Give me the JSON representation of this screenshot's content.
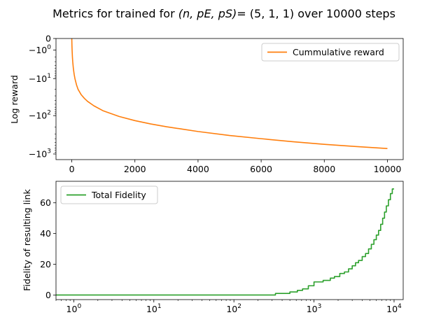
{
  "figure": {
    "title_prefix": "Metrics for trained for ",
    "title_math": "(n, pE, pS)",
    "title_suffix": "= (5, 1, 1) over 10000 steps"
  },
  "chart_data": [
    {
      "type": "line",
      "title": "",
      "xlabel": "",
      "ylabel": "Log reward",
      "xscale": "linear",
      "yscale": "symlog",
      "xlim": [
        -500,
        10500
      ],
      "ylim": [
        -1400,
        0
      ],
      "xticks": [
        0,
        2000,
        4000,
        6000,
        8000,
        10000
      ],
      "xtick_labels": [
        "0",
        "2000",
        "4000",
        "6000",
        "8000",
        "10000"
      ],
      "yticks": [
        0,
        -1,
        -10,
        -100,
        -1000
      ],
      "ytick_labels": [
        {
          "base": "0",
          "exp": ""
        },
        {
          "base": "−10",
          "exp": "0"
        },
        {
          "base": "−10",
          "exp": "1"
        },
        {
          "base": "−10",
          "exp": "2"
        },
        {
          "base": "−10",
          "exp": "3"
        }
      ],
      "legend": {
        "position": "upper-right"
      },
      "series": [
        {
          "name": "Cummulative reward",
          "color": "#ff7f0e",
          "x": [
            0,
            5,
            10,
            20,
            30,
            50,
            75,
            100,
            150,
            200,
            300,
            400,
            500,
            700,
            1000,
            1500,
            2000,
            2500,
            3000,
            3500,
            4000,
            5000,
            6000,
            7000,
            8000,
            9000,
            10000
          ],
          "y": [
            0,
            -0.5,
            -1,
            -2,
            -3,
            -5,
            -7.5,
            -10,
            -15,
            -20,
            -28,
            -35,
            -42,
            -55,
            -75,
            -105,
            -135,
            -165,
            -195,
            -225,
            -260,
            -330,
            -400,
            -480,
            -560,
            -640,
            -720
          ]
        }
      ]
    },
    {
      "type": "line",
      "title": "",
      "xlabel": "",
      "ylabel": "Fidelity of resulting link",
      "xscale": "log",
      "yscale": "linear",
      "xlim": [
        0.6,
        13000
      ],
      "ylim": [
        -3,
        74
      ],
      "xticks": [
        1,
        10,
        100,
        1000,
        10000
      ],
      "xtick_labels": [
        {
          "base": "10",
          "exp": "0"
        },
        {
          "base": "10",
          "exp": "1"
        },
        {
          "base": "10",
          "exp": "2"
        },
        {
          "base": "10",
          "exp": "3"
        },
        {
          "base": "10",
          "exp": "4"
        }
      ],
      "yticks": [
        0,
        20,
        40,
        60
      ],
      "ytick_labels": [
        "0",
        "20",
        "40",
        "60"
      ],
      "legend": {
        "position": "upper-left"
      },
      "series": [
        {
          "name": "Total Fidelity",
          "color": "#2ca02c",
          "step": true,
          "x": [
            0.6,
            330,
            330,
            500,
            500,
            620,
            620,
            720,
            720,
            850,
            850,
            1000,
            1000,
            1300,
            1300,
            1600,
            1600,
            1800,
            1800,
            2100,
            2100,
            2400,
            2400,
            2700,
            2700,
            3000,
            3000,
            3300,
            3300,
            3600,
            3600,
            4000,
            4000,
            4400,
            4400,
            4800,
            4800,
            5200,
            5200,
            5600,
            5600,
            6000,
            6000,
            6400,
            6400,
            6800,
            6800,
            7200,
            7200,
            7600,
            7600,
            8000,
            8000,
            8500,
            8500,
            9000,
            9000,
            9500,
            9500,
            10000
          ],
          "y": [
            0,
            0,
            1,
            1,
            2,
            2,
            3,
            3,
            4,
            4,
            6,
            6,
            8.5,
            8.5,
            9.5,
            9.5,
            11,
            11,
            12,
            12,
            14,
            14,
            15,
            15,
            17,
            17,
            19,
            19,
            21,
            21,
            22.5,
            22.5,
            25,
            25,
            27,
            27,
            30,
            30,
            33,
            33,
            36,
            36,
            39,
            39,
            42,
            42,
            46,
            46,
            50,
            50,
            54,
            54,
            58,
            58,
            62,
            62,
            66,
            66,
            69,
            69
          ]
        }
      ]
    }
  ]
}
